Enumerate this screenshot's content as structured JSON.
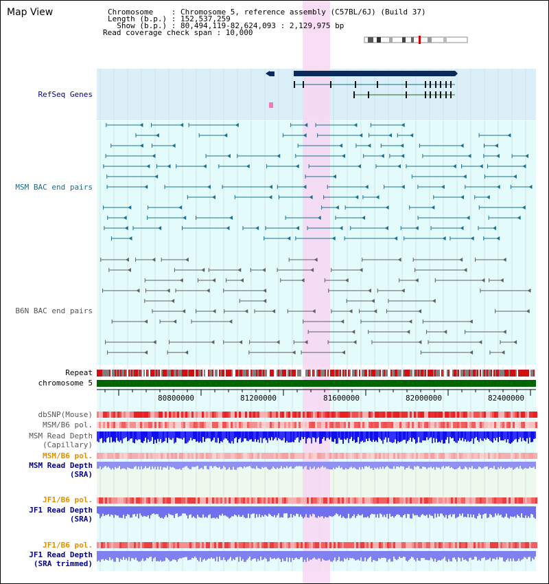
{
  "header": {
    "title": "Map View",
    "info_lines": [
      "Chromosome    : Chromosome 5, reference assembly (C57BL/6J) (Build 37)",
      "Length (b.p.) : 152,537,259",
      "  Show (b.p.) : 80,494,119-82,624,093 : 2,129,975 bp",
      "Read coverage check span : 10,000"
    ]
  },
  "tracks": {
    "refseq": "RefSeq Genes",
    "msm_bac": "MSM BAC end pairs",
    "b6n_bac": "B6N BAC end pairs",
    "repeat": "Repeat",
    "chromosome": "chromosome 5",
    "dbsnp": "dbSNP(Mouse)",
    "msm_b6_pol": "MSM/B6 pol.",
    "msm_depth_cap_1": "MSM Read Depth",
    "msm_depth_cap_2": "(Capillary)",
    "msm_b6_pol_sra": "MSM/B6 pol.",
    "msm_depth_sra_1": "MSM Read Depth",
    "msm_depth_sra_2": "(SRA)",
    "jf1_b6_pol": "JF1/B6 pol.",
    "jf1_depth_1": "JF1 Read Depth",
    "jf1_depth_2": "(SRA)",
    "jf1_b6_pol_trim": "JF1/B6 pol.",
    "jf1_depth_trim_1": "JF1 Read Depth",
    "jf1_depth_trim_2": "(SRA trimmed)"
  },
  "ruler": {
    "ticks": [
      "80800000",
      "81200000",
      "81600000",
      "82000000",
      "82400000"
    ]
  },
  "colors": {
    "highlight": "#f7d7f2",
    "refseq_bg": "#dbeff9",
    "bac_bg": "#e3fbfb",
    "gene": "#0a2a5c",
    "msm_bac": "#1a7090",
    "b6n_bac": "#606060",
    "chromosome_bar": "#006400",
    "depth_blue": "#1010ee",
    "depth_light": "#7070ee",
    "label_blue": "#000088",
    "label_orange": "#e09000"
  }
}
